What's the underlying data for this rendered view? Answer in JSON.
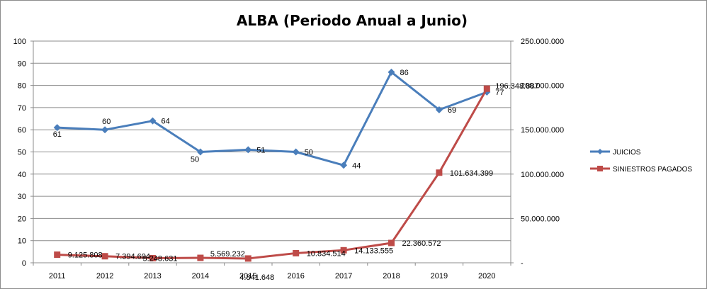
{
  "chart_data": {
    "type": "line",
    "title": "ALBA (Periodo Anual a Junio)",
    "categories": [
      "2011",
      "2012",
      "2013",
      "2014",
      "2015",
      "2016",
      "2017",
      "2018",
      "2019",
      "2020"
    ],
    "y_left": {
      "min": 0,
      "max": 100,
      "step": 10,
      "tick_labels": [
        "0",
        "10",
        "20",
        "30",
        "40",
        "50",
        "60",
        "70",
        "80",
        "90",
        "100"
      ]
    },
    "y_right": {
      "min": 0,
      "max": 250000000,
      "step": 50000000,
      "tick_labels": [
        "-",
        "50.000.000",
        "100.000.000",
        "150.000.000",
        "200.000.000",
        "250.000.000"
      ]
    },
    "grid": true,
    "legend_position": "right",
    "series": [
      {
        "name": "JUICIOS",
        "axis": "left",
        "color": "#4a7ebb",
        "marker": "diamond",
        "values": [
          61,
          60,
          64,
          50,
          51,
          50,
          44,
          86,
          69,
          77
        ],
        "labels": [
          "61",
          "60",
          "64",
          "50",
          "51",
          "50",
          "44",
          "86",
          "69",
          "77"
        ]
      },
      {
        "name": "SINIESTROS PAGADOS",
        "axis": "right",
        "color": "#be4b48",
        "marker": "square",
        "values": [
          9125808,
          7394604,
          5248631,
          5569232,
          4841648,
          10834514,
          14133555,
          22360572,
          101634399,
          196348887
        ],
        "labels": [
          "9.125.808",
          "7.394.604",
          "5.248.631",
          "5.569.232",
          "4.841.648",
          "10.834.514",
          "14.133.555",
          "22.360.572",
          "101.634.399",
          "196.348.887"
        ]
      }
    ]
  }
}
